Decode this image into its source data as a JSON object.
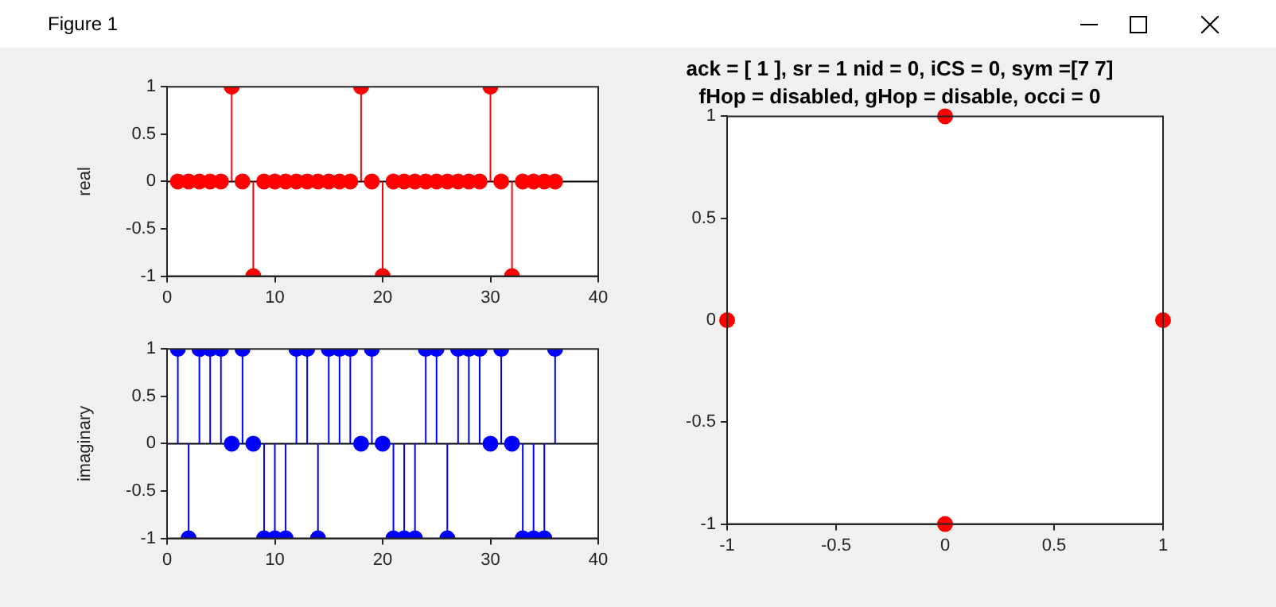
{
  "chart_data": [
    {
      "type": "lollipop",
      "annotations": [
        "Figure 1"
      ],
      "ylabel": "real",
      "x": [
        1,
        2,
        3,
        4,
        5,
        6,
        7,
        8,
        9,
        10,
        11,
        12,
        13,
        14,
        15,
        16,
        17,
        18,
        19,
        20,
        21,
        22,
        23,
        24,
        25,
        26,
        27,
        28,
        29,
        30,
        31,
        32,
        33,
        34,
        35,
        36
      ],
      "series": [
        {
          "color": "#ff0000",
          "values": [
            0,
            0,
            0,
            0,
            0,
            1,
            0,
            -1,
            0,
            0,
            0,
            0,
            0,
            0,
            0,
            0,
            0,
            1,
            0,
            -1,
            0,
            0,
            0,
            0,
            0,
            0,
            0,
            0,
            0,
            1,
            0,
            -1,
            0,
            0,
            0,
            0
          ]
        }
      ],
      "xlim": [
        0,
        40
      ],
      "xticks": [
        0,
        10,
        20,
        30,
        40
      ],
      "ylim": [
        -1,
        1
      ],
      "yticks": [
        -1,
        -0.5,
        0,
        0.5,
        1
      ],
      "marker": "circle",
      "ref_lines": [
        {
          "axis": "y",
          "value": 0,
          "color": "#000000"
        }
      ]
    },
    {
      "type": "lollipop",
      "ylabel": "imaginary",
      "x": [
        1,
        2,
        3,
        4,
        5,
        6,
        7,
        8,
        9,
        10,
        11,
        12,
        13,
        14,
        15,
        16,
        17,
        18,
        19,
        20,
        21,
        22,
        23,
        24,
        25,
        26,
        27,
        28,
        29,
        30,
        31,
        32,
        33,
        34,
        35,
        36
      ],
      "series": [
        {
          "color": "#0000ff",
          "values": [
            1,
            -1,
            1,
            1,
            1,
            0,
            1,
            0,
            -1,
            -1,
            -1,
            1,
            1,
            -1,
            1,
            1,
            1,
            0,
            1,
            0,
            -1,
            -1,
            -1,
            1,
            1,
            -1,
            1,
            1,
            1,
            0,
            1,
            0,
            -1,
            -1,
            -1,
            1
          ]
        }
      ],
      "xlim": [
        0,
        40
      ],
      "xticks": [
        0,
        10,
        20,
        30,
        40
      ],
      "ylim": [
        -1,
        1
      ],
      "yticks": [
        -1,
        -0.5,
        0,
        0.5,
        1
      ],
      "marker": "circle",
      "ref_lines": [
        {
          "axis": "y",
          "value": 0,
          "color": "#000000"
        }
      ]
    },
    {
      "type": "scatter",
      "title": "ack = [ 1 ], sr = 1 nid = 0, iCS = 0, sym =[7 7]",
      "subtitle": "fHop = disabled, gHop = disable, occi = 0",
      "x": [
        -1,
        0,
        1,
        0
      ],
      "series": [
        {
          "color": "#ff0000",
          "values": [
            0,
            1,
            0,
            -1
          ]
        }
      ],
      "xlim": [
        -1,
        1
      ],
      "xticks": [
        -1,
        -0.5,
        0,
        0.5,
        1
      ],
      "ylim": [
        -1,
        1
      ],
      "yticks": [
        -1,
        -0.5,
        0,
        0.5,
        1
      ],
      "marker": "circle"
    }
  ]
}
